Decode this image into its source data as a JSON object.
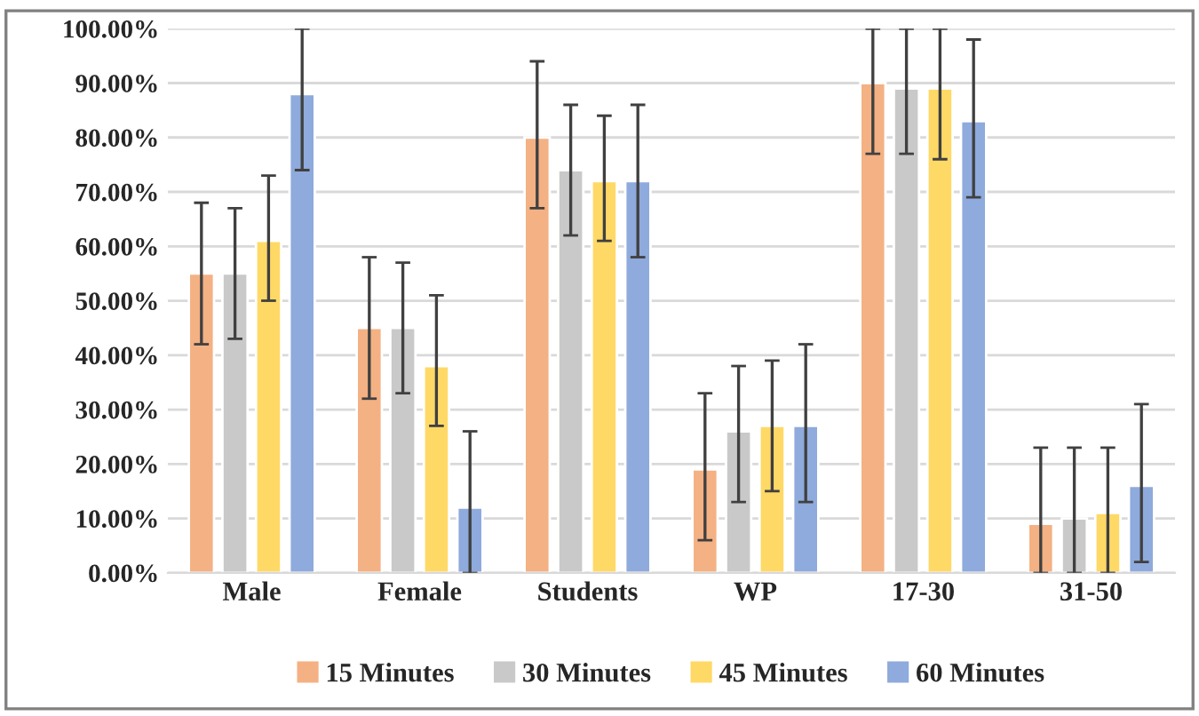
{
  "chart_data": {
    "type": "bar",
    "categories": [
      "Male",
      "Female",
      "Students",
      "WP",
      "17-30",
      "31-50"
    ],
    "series": [
      {
        "name": "15 Minutes",
        "color": "#f4b183",
        "values": [
          55,
          45,
          80,
          19,
          90,
          9
        ],
        "errors": [
          [
            42,
            68
          ],
          [
            32,
            58
          ],
          [
            67,
            94
          ],
          [
            6,
            33
          ],
          [
            77,
            100
          ],
          [
            0,
            23
          ]
        ]
      },
      {
        "name": "30 Minutes",
        "color": "#c9c9c9",
        "values": [
          55,
          45,
          74,
          26,
          89,
          10
        ],
        "errors": [
          [
            43,
            67
          ],
          [
            33,
            57
          ],
          [
            62,
            86
          ],
          [
            13,
            38
          ],
          [
            77,
            100
          ],
          [
            0,
            23
          ]
        ]
      },
      {
        "name": "45 Minutes",
        "color": "#ffd966",
        "values": [
          61,
          38,
          72,
          27,
          89,
          11
        ],
        "errors": [
          [
            50,
            73
          ],
          [
            27,
            51
          ],
          [
            61,
            84
          ],
          [
            15,
            39
          ],
          [
            76,
            100
          ],
          [
            0,
            23
          ]
        ]
      },
      {
        "name": "60 Minutes",
        "color": "#8faadc",
        "values": [
          88,
          12,
          72,
          27,
          83,
          16
        ],
        "errors": [
          [
            74,
            100
          ],
          [
            0,
            26
          ],
          [
            58,
            86
          ],
          [
            13,
            42
          ],
          [
            69,
            98
          ],
          [
            2,
            31
          ]
        ]
      }
    ],
    "ylim": [
      0,
      100
    ],
    "yticks": [
      {
        "value": 0,
        "label": "0.00%"
      },
      {
        "value": 10,
        "label": "10.00%"
      },
      {
        "value": 20,
        "label": "20.00%"
      },
      {
        "value": 30,
        "label": "30.00%"
      },
      {
        "value": 40,
        "label": "40.00%"
      },
      {
        "value": 50,
        "label": "50.00%"
      },
      {
        "value": 60,
        "label": "60.00%"
      },
      {
        "value": 70,
        "label": "70.00%"
      },
      {
        "value": 80,
        "label": "80.00%"
      },
      {
        "value": 90,
        "label": "90.00%"
      },
      {
        "value": 100,
        "label": "100.00%"
      }
    ],
    "grid": "y",
    "legend": "bottom"
  }
}
